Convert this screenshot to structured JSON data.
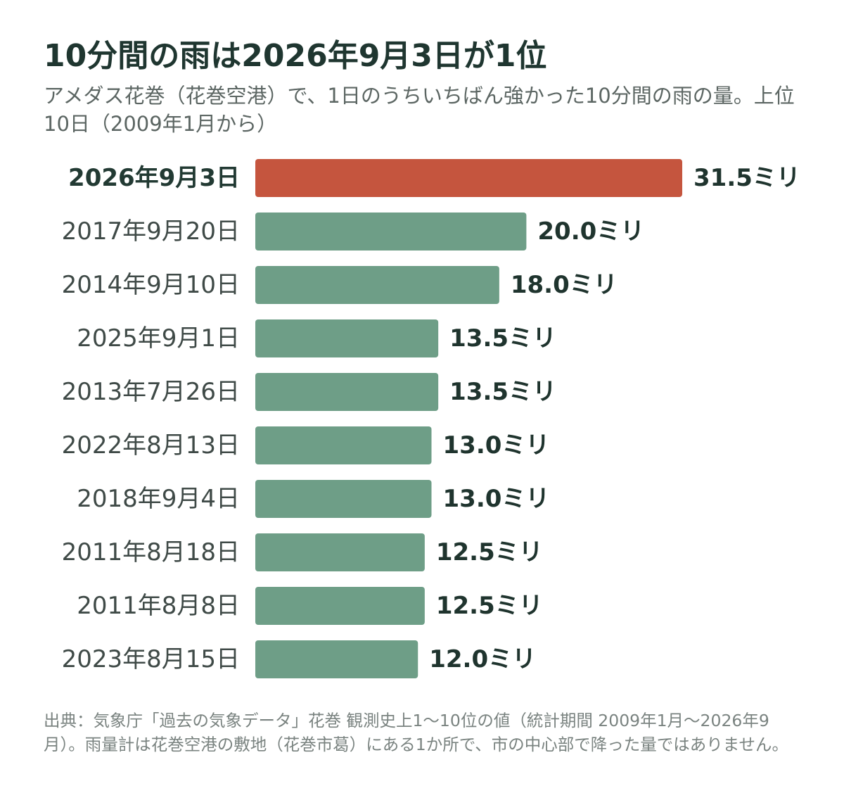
{
  "title": "10分間の雨は2026年9月3日が1位",
  "subtitle": "アメダス花巻（花巻空港）で、1日のうちいちばん強かった10分間の雨の量。上位10日（2009年1月から）",
  "source": "出典：気象庁「過去の気象データ」花巻 観測史上1〜10位の値（統計期間 2009年1月〜2026年9月）。雨量計は花巻空港の敷地（花巻市葛）にある1か所で、市の中心部で降った量ではありません。",
  "colors": {
    "highlight": "#c5553e",
    "bar": "#6e9e87"
  },
  "chart_data": {
    "type": "bar",
    "orientation": "horizontal",
    "unit": "ミリ",
    "categories": [
      "2026年9月3日",
      "2017年9月20日",
      "2014年9月10日",
      "2025年9月1日",
      "2013年7月26日",
      "2022年8月13日",
      "2018年9月4日",
      "2011年8月18日",
      "2011年8月8日",
      "2023年8月15日"
    ],
    "values": [
      31.5,
      20.0,
      18.0,
      13.5,
      13.5,
      13.0,
      13.0,
      12.5,
      12.5,
      12.0
    ],
    "value_labels": [
      "31.5ミリ",
      "20.0ミリ",
      "18.0ミリ",
      "13.5ミリ",
      "13.5ミリ",
      "13.0ミリ",
      "13.0ミリ",
      "12.5ミリ",
      "12.5ミリ",
      "12.0ミリ"
    ],
    "highlight_index": 0,
    "xlim": [
      0,
      31.5
    ],
    "grid": false,
    "legend": "none"
  }
}
